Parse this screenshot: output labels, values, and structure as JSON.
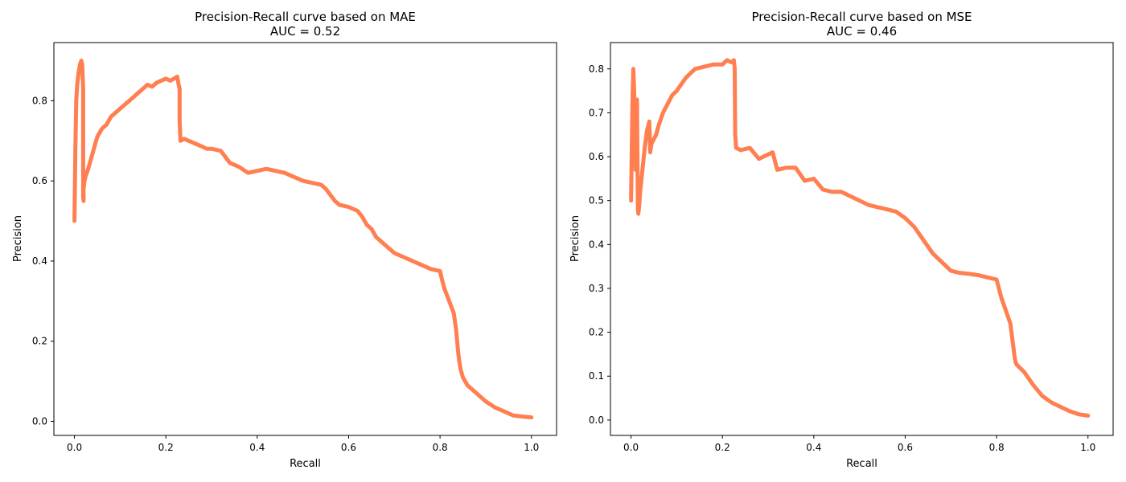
{
  "chart_data": [
    {
      "type": "line",
      "title": "Precision-Recall curve based on MAE",
      "subtitle": "AUC = 0.52",
      "xlabel": "Recall",
      "ylabel": "Precision",
      "xlim": [
        -0.045,
        1.055
      ],
      "ylim": [
        -0.035,
        0.945
      ],
      "xticks": [
        0.0,
        0.2,
        0.4,
        0.6,
        0.8,
        1.0
      ],
      "xtick_labels": [
        "0.0",
        "0.2",
        "0.4",
        "0.6",
        "0.8",
        "1.0"
      ],
      "yticks": [
        0.0,
        0.2,
        0.4,
        0.6,
        0.8
      ],
      "ytick_labels": [
        "0.0",
        "0.2",
        "0.4",
        "0.6",
        "0.8"
      ],
      "grid": false,
      "color": "#FF7F50",
      "series": [
        {
          "x": [
            0.0,
            0.002,
            0.004,
            0.006,
            0.009,
            0.012,
            0.015,
            0.017,
            0.019,
            0.019,
            0.02,
            0.02,
            0.022,
            0.024,
            0.027,
            0.03,
            0.035,
            0.04,
            0.045,
            0.05,
            0.06,
            0.07,
            0.075,
            0.08,
            0.09,
            0.1,
            0.12,
            0.14,
            0.16,
            0.17,
            0.18,
            0.2,
            0.21,
            0.225,
            0.228,
            0.23,
            0.23,
            0.232,
            0.24,
            0.25,
            0.26,
            0.27,
            0.28,
            0.29,
            0.3,
            0.32,
            0.33,
            0.34,
            0.36,
            0.38,
            0.4,
            0.42,
            0.44,
            0.46,
            0.48,
            0.5,
            0.52,
            0.54,
            0.55,
            0.56,
            0.57,
            0.58,
            0.6,
            0.62,
            0.63,
            0.64,
            0.65,
            0.66,
            0.68,
            0.7,
            0.72,
            0.74,
            0.76,
            0.78,
            0.8,
            0.805,
            0.81,
            0.82,
            0.83,
            0.835,
            0.84,
            0.842,
            0.845,
            0.85,
            0.86,
            0.88,
            0.9,
            0.92,
            0.94,
            0.96,
            0.98,
            1.0
          ],
          "y": [
            0.5,
            0.68,
            0.8,
            0.84,
            0.87,
            0.89,
            0.9,
            0.89,
            0.83,
            0.56,
            0.55,
            0.58,
            0.6,
            0.61,
            0.62,
            0.63,
            0.65,
            0.67,
            0.69,
            0.71,
            0.73,
            0.74,
            0.75,
            0.76,
            0.77,
            0.78,
            0.8,
            0.82,
            0.84,
            0.835,
            0.845,
            0.855,
            0.85,
            0.86,
            0.84,
            0.83,
            0.75,
            0.7,
            0.705,
            0.7,
            0.695,
            0.69,
            0.685,
            0.68,
            0.68,
            0.675,
            0.66,
            0.645,
            0.635,
            0.62,
            0.625,
            0.63,
            0.625,
            0.62,
            0.61,
            0.6,
            0.595,
            0.59,
            0.58,
            0.565,
            0.55,
            0.54,
            0.535,
            0.525,
            0.51,
            0.49,
            0.48,
            0.46,
            0.44,
            0.42,
            0.41,
            0.4,
            0.39,
            0.38,
            0.375,
            0.35,
            0.33,
            0.3,
            0.27,
            0.23,
            0.17,
            0.15,
            0.13,
            0.11,
            0.09,
            0.07,
            0.05,
            0.035,
            0.025,
            0.015,
            0.012,
            0.01
          ]
        }
      ]
    },
    {
      "type": "line",
      "title": "Precision-Recall curve based on MSE",
      "subtitle": "AUC = 0.46",
      "xlabel": "Recall",
      "ylabel": "Precision",
      "xlim": [
        -0.045,
        1.055
      ],
      "ylim": [
        -0.035,
        0.86
      ],
      "xticks": [
        0.0,
        0.2,
        0.4,
        0.6,
        0.8,
        1.0
      ],
      "xtick_labels": [
        "0.0",
        "0.2",
        "0.4",
        "0.6",
        "0.8",
        "1.0"
      ],
      "yticks": [
        0.0,
        0.1,
        0.2,
        0.3,
        0.4,
        0.5,
        0.6,
        0.7,
        0.8
      ],
      "ytick_labels": [
        "0.0",
        "0.1",
        "0.2",
        "0.3",
        "0.4",
        "0.5",
        "0.6",
        "0.7",
        "0.8"
      ],
      "grid": false,
      "color": "#FF7F50",
      "series": [
        {
          "x": [
            0.0,
            0.003,
            0.005,
            0.007,
            0.008,
            0.01,
            0.012,
            0.013,
            0.015,
            0.016,
            0.018,
            0.02,
            0.025,
            0.03,
            0.035,
            0.04,
            0.042,
            0.045,
            0.05,
            0.055,
            0.06,
            0.07,
            0.08,
            0.09,
            0.1,
            0.12,
            0.14,
            0.16,
            0.18,
            0.2,
            0.21,
            0.22,
            0.225,
            0.227,
            0.228,
            0.23,
            0.24,
            0.26,
            0.28,
            0.3,
            0.31,
            0.32,
            0.34,
            0.36,
            0.38,
            0.4,
            0.42,
            0.44,
            0.46,
            0.48,
            0.5,
            0.52,
            0.54,
            0.56,
            0.58,
            0.6,
            0.62,
            0.64,
            0.66,
            0.68,
            0.7,
            0.72,
            0.74,
            0.76,
            0.78,
            0.8,
            0.805,
            0.81,
            0.82,
            0.83,
            0.835,
            0.84,
            0.842,
            0.845,
            0.85,
            0.86,
            0.88,
            0.9,
            0.92,
            0.94,
            0.96,
            0.98,
            1.0
          ],
          "y": [
            0.5,
            0.72,
            0.8,
            0.75,
            0.62,
            0.57,
            0.72,
            0.73,
            0.48,
            0.47,
            0.49,
            0.52,
            0.57,
            0.62,
            0.66,
            0.68,
            0.61,
            0.63,
            0.64,
            0.65,
            0.67,
            0.7,
            0.72,
            0.74,
            0.75,
            0.78,
            0.8,
            0.805,
            0.81,
            0.81,
            0.82,
            0.815,
            0.82,
            0.8,
            0.65,
            0.62,
            0.615,
            0.62,
            0.595,
            0.605,
            0.61,
            0.57,
            0.575,
            0.575,
            0.545,
            0.55,
            0.525,
            0.52,
            0.52,
            0.51,
            0.5,
            0.49,
            0.485,
            0.48,
            0.475,
            0.46,
            0.44,
            0.41,
            0.38,
            0.36,
            0.34,
            0.335,
            0.333,
            0.33,
            0.325,
            0.32,
            0.3,
            0.28,
            0.25,
            0.22,
            0.18,
            0.14,
            0.13,
            0.125,
            0.12,
            0.11,
            0.08,
            0.055,
            0.04,
            0.03,
            0.02,
            0.013,
            0.01
          ]
        }
      ]
    }
  ]
}
